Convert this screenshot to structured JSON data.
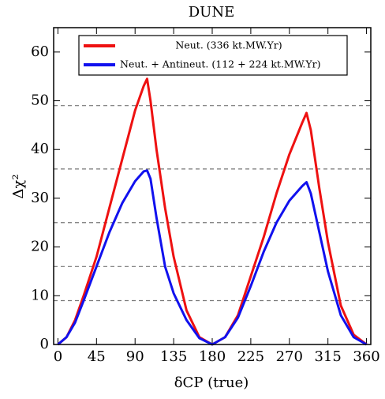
{
  "chart_data": {
    "type": "line",
    "title": "DUNE",
    "xlabel": "δCP (true)",
    "ylabel": "Δχ²",
    "x": [
      0,
      10,
      20,
      30,
      45,
      60,
      75,
      90,
      100,
      104,
      108,
      115,
      125,
      135,
      150,
      165,
      180,
      195,
      210,
      225,
      240,
      255,
      270,
      285,
      290,
      295,
      305,
      315,
      330,
      345,
      360
    ],
    "series": [
      {
        "name": "Neut. (336 kt.MW.Yr)",
        "color": "#ee1111",
        "values": [
          0,
          1.5,
          5,
          10,
          18,
          28,
          38,
          48,
          53,
          54.5,
          50,
          40,
          28,
          18,
          7,
          1.5,
          0,
          1.5,
          6,
          14,
          22,
          31,
          39,
          45.5,
          47.5,
          44,
          32,
          21,
          8,
          2,
          0
        ]
      },
      {
        "name": "Neut. + Antineut. (112 + 224 kt.MW.Yr)",
        "color": "#1111ee",
        "values": [
          0,
          1.5,
          4.5,
          9,
          16,
          23,
          29,
          33.5,
          35.5,
          35.7,
          34,
          26,
          16,
          10.5,
          5,
          1.3,
          0,
          1.5,
          5.5,
          12,
          19,
          25,
          29.5,
          32.5,
          33.3,
          31,
          23,
          15,
          6,
          1.5,
          0
        ]
      }
    ],
    "hlines": [
      9,
      16,
      25,
      36,
      49
    ],
    "xlim": [
      -5,
      365
    ],
    "xticks": [
      0,
      45,
      90,
      135,
      180,
      225,
      270,
      315,
      360
    ],
    "ylim": [
      0,
      65
    ],
    "yticks": [
      0,
      10,
      20,
      30,
      40,
      50,
      60
    ],
    "legend": "top"
  }
}
